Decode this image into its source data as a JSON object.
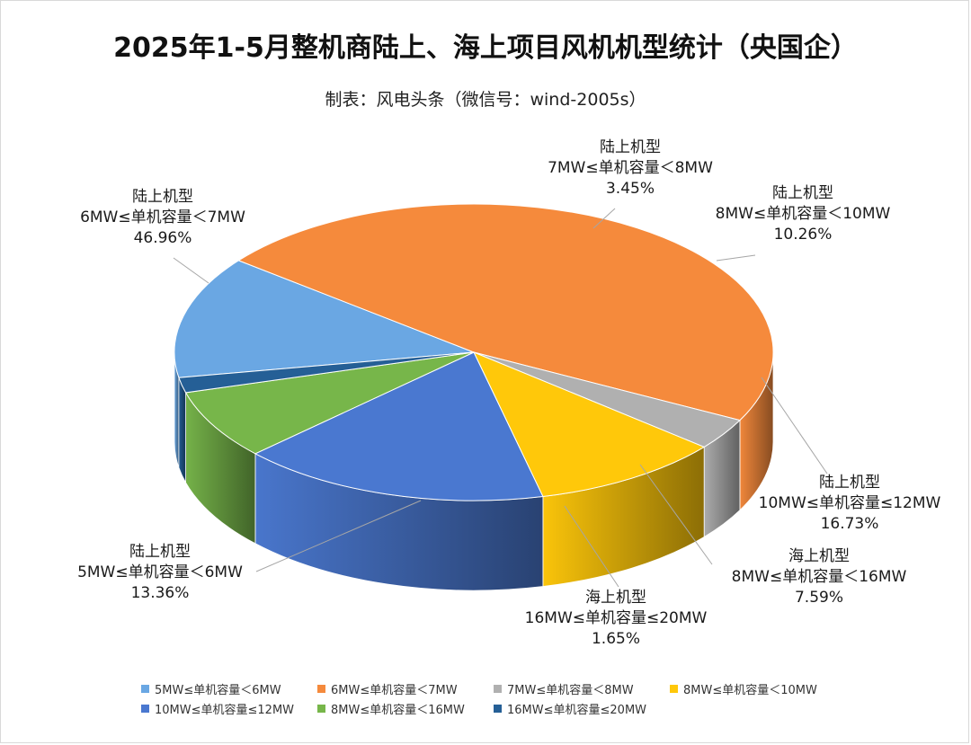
{
  "title": "2025年1-5月整机商陆上、海上项目风机机型统计（央国企）",
  "subtitle": "制表：风电头条（微信号：wind-2005s）",
  "chart_data": {
    "type": "pie",
    "title": "2025年1-5月整机商陆上、海上项目风机机型统计（央国企）",
    "subtitle": "制表：风电头条（微信号：wind-2005s）",
    "legend_position": "bottom",
    "slices": [
      {
        "legend": "5MW≤单机容量＜6MW",
        "category": "陆上机型",
        "range": "5MW≤单机容量＜6MW",
        "value": 13.36,
        "label": "13.36%",
        "color": "#6aa7e3"
      },
      {
        "legend": "6MW≤单机容量＜7MW",
        "category": "陆上机型",
        "range": "6MW≤单机容量＜7MW",
        "value": 46.96,
        "label": "46.96%",
        "color": "#f58a3c"
      },
      {
        "legend": "7MW≤单机容量＜8MW",
        "category": "陆上机型",
        "range": "7MW≤单机容量＜8MW",
        "value": 3.45,
        "label": "3.45%",
        "color": "#b0b0b0"
      },
      {
        "legend": "8MW≤单机容量＜10MW",
        "category": "陆上机型",
        "range": "8MW≤单机容量＜10MW",
        "value": 10.26,
        "label": "10.26%",
        "color": "#ffc80a"
      },
      {
        "legend": "10MW≤单机容量≤12MW",
        "category": "陆上机型",
        "range": "10MW≤单机容量≤12MW",
        "value": 16.73,
        "label": "16.73%",
        "color": "#4a78d0"
      },
      {
        "legend": "8MW≤单机容量＜16MW",
        "category": "海上机型",
        "range": "8MW≤单机容量＜16MW",
        "value": 7.59,
        "label": "7.59%",
        "color": "#77b64a"
      },
      {
        "legend": "16MW≤单机容量≤20MW",
        "category": "海上机型",
        "range": "16MW≤单机容量≤20MW",
        "value": 1.65,
        "label": "1.65%",
        "color": "#255f96"
      }
    ]
  }
}
